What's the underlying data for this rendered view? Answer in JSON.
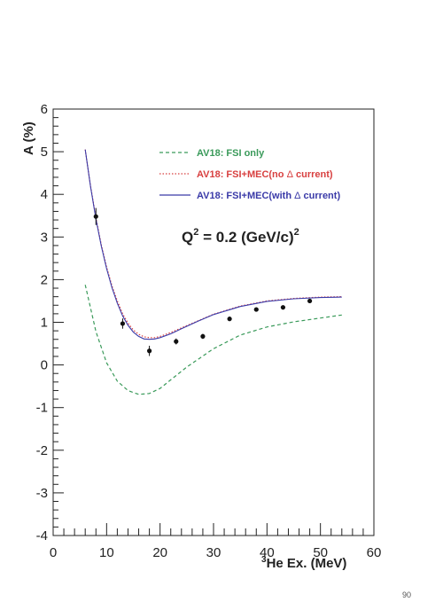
{
  "chart_data": {
    "type": "line",
    "title": "",
    "xlabel_sup": "3",
    "xlabel": "He Ex. (MeV)",
    "ylabel": "A (%)",
    "xlim": [
      0,
      60
    ],
    "ylim": [
      -4,
      6
    ],
    "xticks": [
      "0",
      "10",
      "20",
      "30",
      "40",
      "50",
      "60"
    ],
    "yticks": [
      "-4",
      "-3",
      "-2",
      "-1",
      "0",
      "1",
      "2",
      "3",
      "4",
      "5",
      "6"
    ],
    "annotation": {
      "prefix": "Q",
      "sup": "2",
      "mid": " = 0.2 (GeV/c)",
      "sup2": "2"
    },
    "corner_mark": "90",
    "legend": {
      "placement": "top-right",
      "entries": [
        {
          "key": "fsi",
          "style": "dashed",
          "color": "#3a9a5a",
          "parts": [
            "AV18:  FSI only"
          ]
        },
        {
          "key": "noD",
          "style": "dotted",
          "color": "#d84040",
          "parts": [
            "AV18:  FSI+MEC(no ",
            "Δ",
            " current)"
          ]
        },
        {
          "key": "withD",
          "style": "solid",
          "color": "#3a3aa8",
          "parts": [
            "AV18:  FSI+MEC(with ",
            "Δ",
            " current)"
          ]
        }
      ]
    },
    "series": [
      {
        "key": "fsi",
        "color": "#3a9a5a",
        "style": "dashed",
        "x": [
          6,
          8,
          10,
          12,
          14,
          16,
          18,
          20,
          22,
          25,
          30,
          35,
          40,
          45,
          50,
          54
        ],
        "y": [
          1.88,
          0.78,
          0.05,
          -0.38,
          -0.6,
          -0.69,
          -0.67,
          -0.55,
          -0.35,
          -0.05,
          0.38,
          0.7,
          0.89,
          1.01,
          1.1,
          1.17
        ]
      },
      {
        "key": "noD",
        "color": "#d84040",
        "style": "dotted",
        "x": [
          6,
          7,
          8,
          9,
          10,
          11,
          12,
          13,
          14,
          15,
          16,
          17,
          18,
          19,
          20,
          22,
          24,
          27,
          30,
          35,
          40,
          45,
          50,
          54
        ],
        "y": [
          5.05,
          4.2,
          3.45,
          2.82,
          2.3,
          1.85,
          1.5,
          1.2,
          0.98,
          0.82,
          0.72,
          0.66,
          0.64,
          0.64,
          0.67,
          0.76,
          0.87,
          1.03,
          1.19,
          1.38,
          1.5,
          1.56,
          1.59,
          1.6
        ]
      },
      {
        "key": "withD",
        "color": "#3a3aa8",
        "style": "solid",
        "x": [
          6,
          7,
          8,
          9,
          10,
          11,
          12,
          13,
          14,
          15,
          16,
          17,
          18,
          19,
          20,
          22,
          24,
          27,
          30,
          35,
          40,
          45,
          50,
          54
        ],
        "y": [
          5.05,
          4.18,
          3.42,
          2.79,
          2.26,
          1.81,
          1.45,
          1.15,
          0.93,
          0.77,
          0.67,
          0.61,
          0.6,
          0.61,
          0.64,
          0.73,
          0.85,
          1.02,
          1.18,
          1.37,
          1.49,
          1.55,
          1.58,
          1.59
        ]
      }
    ],
    "points": {
      "x": [
        8,
        13,
        18,
        23,
        28,
        33,
        38,
        43,
        48
      ],
      "y": [
        3.48,
        0.97,
        0.33,
        0.55,
        0.67,
        1.08,
        1.3,
        1.35,
        1.5
      ],
      "err": [
        0.2,
        0.12,
        0.12,
        0.07,
        0.06,
        0.05,
        0.05,
        0.05,
        0.05
      ]
    }
  }
}
